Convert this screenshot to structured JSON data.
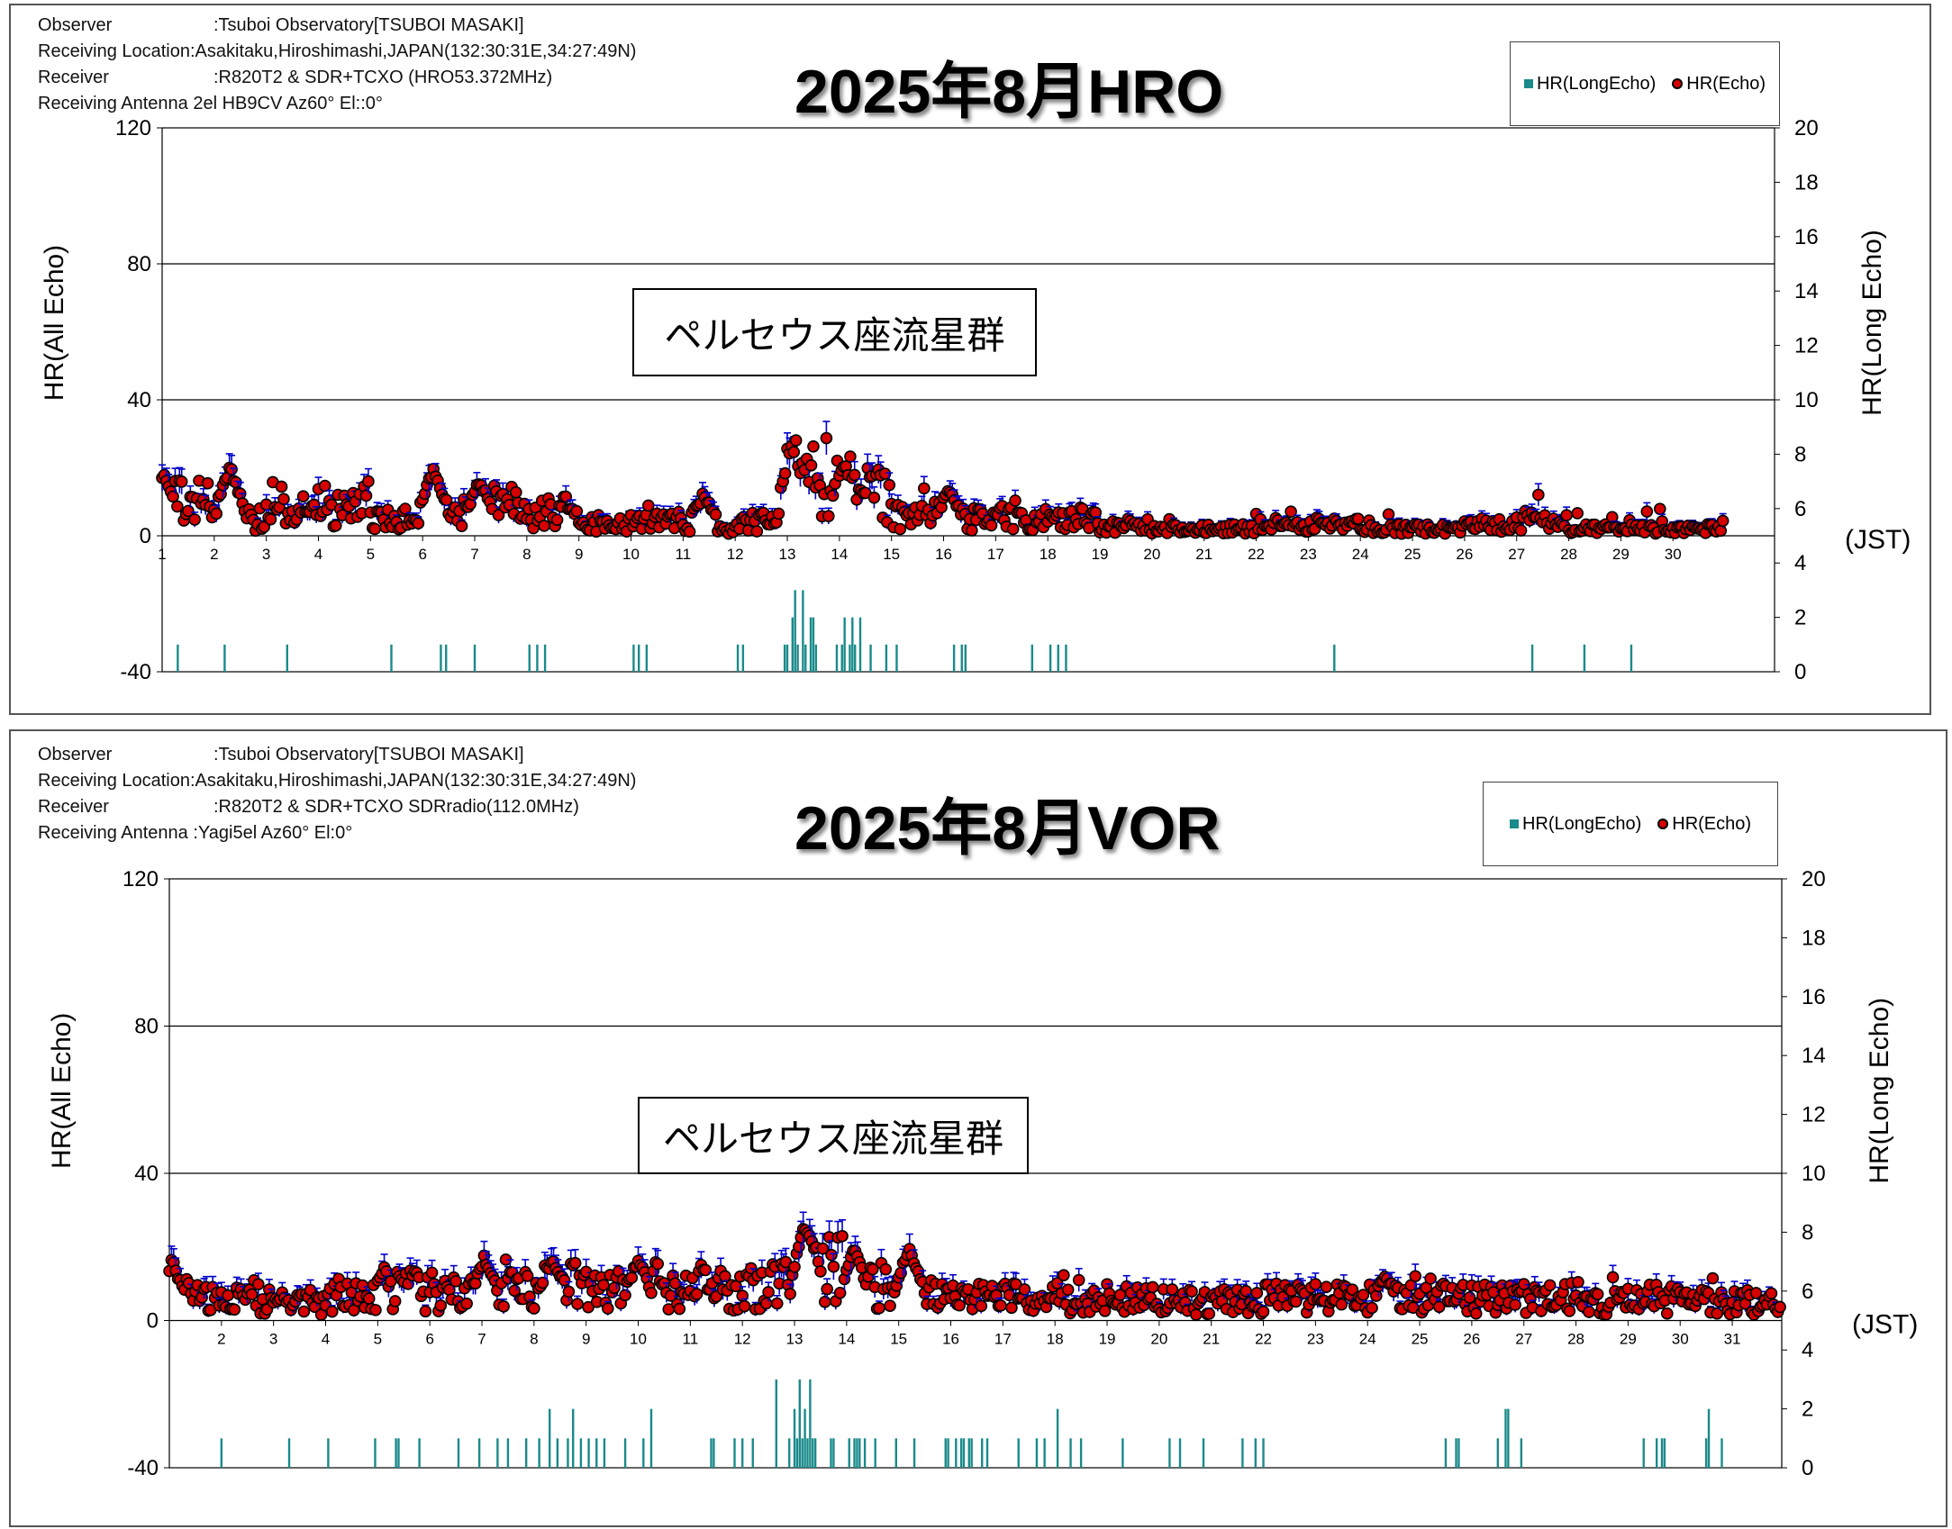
{
  "panels": [
    {
      "metadata": [
        {
          "label": "Observer",
          "value": ":Tsuboi Observatory[TSUBOI MASAKI]"
        },
        {
          "label": "Receiving Location",
          "value": ":Asakitaku,Hiroshimashi,JAPAN(132:30:31E,34:27:49N)"
        },
        {
          "label": "Receiver",
          "value": ":R820T2 & SDR+TCXO (HRO53.372MHz)"
        },
        {
          "label": "Receiving Antenna",
          "value": "2el HB9CV Az60°  El::0°"
        }
      ],
      "annotation": "ペルセウス座流星群",
      "legend": {
        "long": "HR(LongEcho)",
        "echo": "HR(Echo)"
      },
      "unit_label": "(JST)"
    },
    {
      "metadata": [
        {
          "label": "Observer",
          "value": ":Tsuboi Observatory[TSUBOI MASAKI]"
        },
        {
          "label": "Receiving Location",
          "value": ":Asakitaku,Hiroshimashi,JAPAN(132:30:31E,34:27:49N)"
        },
        {
          "label": "Receiver",
          "value": ":R820T2 & SDR+TCXO SDRradio(112.0MHz)"
        },
        {
          "label": "Receiving Antenna",
          "value": ":Yagi5el   Az60°  El:0°"
        }
      ],
      "annotation": "ペルセウス座流星群",
      "legend": {
        "long": "HR(LongEcho)",
        "echo": "HR(Echo)"
      },
      "unit_label": "(JST)"
    }
  ],
  "chart_data": [
    {
      "type": "scatter",
      "title": "2025年8月HRO",
      "ylabel": "HR(All Echo)",
      "y2label": "HR(Long Echo)",
      "ylim": [
        -40,
        120
      ],
      "y2lim": [
        0,
        20
      ],
      "yticks": [
        -40,
        0,
        40,
        80,
        120
      ],
      "y2ticks": [
        0,
        2,
        4,
        6,
        8,
        10,
        12,
        14,
        16,
        18,
        20
      ],
      "xlim": [
        1,
        31.95
      ],
      "xticks": [
        "1",
        "2",
        "3",
        "4",
        "5",
        "6",
        "7",
        "8",
        "9",
        "10",
        "11",
        "12",
        "13",
        "14",
        "15",
        "16",
        "17",
        "18",
        "19",
        "20",
        "21",
        "22",
        "23",
        "24",
        "25",
        "26",
        "27",
        "28",
        "29",
        "30"
      ],
      "gridlines": [
        0,
        40,
        80
      ],
      "legend_position": "top-right",
      "colors": {
        "echo_fill": "#d40000",
        "echo_edge": "#000000",
        "errorbar": "#0000cc",
        "long_echo": "#1a8a8a"
      },
      "series": [
        {
          "name": "HR(Echo)",
          "daily_avg": [
            10,
            5,
            7,
            9,
            5,
            7,
            9,
            7,
            4,
            4,
            2,
            4,
            17,
            12,
            6,
            5,
            5,
            5,
            3,
            2,
            2,
            3,
            3,
            2,
            2,
            3,
            4,
            2,
            2,
            2
          ],
          "peaks": [
            {
              "x": 1.05,
              "y": 17
            },
            {
              "x": 2.3,
              "y": 19
            },
            {
              "x": 6.2,
              "y": 18
            },
            {
              "x": 7.1,
              "y": 15
            },
            {
              "x": 11.4,
              "y": 11
            },
            {
              "x": 13.1,
              "y": 26
            },
            {
              "x": 13.3,
              "y": 20
            },
            {
              "x": 14.1,
              "y": 20
            },
            {
              "x": 16.1,
              "y": 12
            }
          ]
        },
        {
          "name": "HR(LongEcho)",
          "values": [
            {
              "x": 1.3,
              "v": 1
            },
            {
              "x": 2.2,
              "v": 1
            },
            {
              "x": 3.4,
              "v": 1
            },
            {
              "x": 5.4,
              "v": 1
            },
            {
              "x": 6.35,
              "v": 1
            },
            {
              "x": 6.45,
              "v": 1
            },
            {
              "x": 7.0,
              "v": 1
            },
            {
              "x": 8.05,
              "v": 1
            },
            {
              "x": 8.2,
              "v": 1
            },
            {
              "x": 8.35,
              "v": 1
            },
            {
              "x": 10.05,
              "v": 1
            },
            {
              "x": 10.15,
              "v": 1
            },
            {
              "x": 10.3,
              "v": 1
            },
            {
              "x": 12.05,
              "v": 1
            },
            {
              "x": 12.15,
              "v": 1
            },
            {
              "x": 12.95,
              "v": 1
            },
            {
              "x": 13.0,
              "v": 1
            },
            {
              "x": 13.1,
              "v": 2
            },
            {
              "x": 13.15,
              "v": 3
            },
            {
              "x": 13.2,
              "v": 1
            },
            {
              "x": 13.3,
              "v": 3
            },
            {
              "x": 13.35,
              "v": 1
            },
            {
              "x": 13.45,
              "v": 2
            },
            {
              "x": 13.5,
              "v": 2
            },
            {
              "x": 13.55,
              "v": 1
            },
            {
              "x": 13.95,
              "v": 1
            },
            {
              "x": 14.05,
              "v": 1
            },
            {
              "x": 14.1,
              "v": 2
            },
            {
              "x": 14.2,
              "v": 1
            },
            {
              "x": 14.25,
              "v": 2
            },
            {
              "x": 14.3,
              "v": 1
            },
            {
              "x": 14.4,
              "v": 2
            },
            {
              "x": 14.6,
              "v": 1
            },
            {
              "x": 14.9,
              "v": 1
            },
            {
              "x": 15.1,
              "v": 1
            },
            {
              "x": 16.2,
              "v": 1
            },
            {
              "x": 16.35,
              "v": 1
            },
            {
              "x": 16.42,
              "v": 1
            },
            {
              "x": 17.7,
              "v": 1
            },
            {
              "x": 18.05,
              "v": 1
            },
            {
              "x": 18.2,
              "v": 1
            },
            {
              "x": 18.35,
              "v": 1
            },
            {
              "x": 23.5,
              "v": 1
            },
            {
              "x": 27.3,
              "v": 1
            },
            {
              "x": 28.3,
              "v": 1
            },
            {
              "x": 29.2,
              "v": 1
            }
          ]
        }
      ]
    },
    {
      "type": "scatter",
      "title": "2025年8月VOR",
      "ylabel": "HR(All Echo)",
      "y2label": "HR(Long Echo)",
      "ylim": [
        -40,
        120
      ],
      "y2lim": [
        0,
        20
      ],
      "yticks": [
        -40,
        0,
        40,
        80,
        120
      ],
      "y2ticks": [
        0,
        2,
        4,
        6,
        8,
        10,
        12,
        14,
        16,
        18,
        20
      ],
      "xlim": [
        1,
        31.95
      ],
      "xticks": [
        "2",
        "3",
        "4",
        "5",
        "6",
        "7",
        "8",
        "9",
        "10",
        "11",
        "12",
        "13",
        "14",
        "15",
        "16",
        "17",
        "18",
        "19",
        "20",
        "21",
        "22",
        "23",
        "24",
        "25",
        "26",
        "27",
        "28",
        "29",
        "30",
        "31"
      ],
      "gridlines": [
        0,
        40,
        80
      ],
      "legend_position": "top-right",
      "colors": {
        "echo_fill": "#d40000",
        "echo_edge": "#000000",
        "errorbar": "#0000cc",
        "long_echo": "#1a8a8a"
      },
      "series": [
        {
          "name": "HR(Echo)",
          "daily_avg": [
            7,
            6,
            5,
            6,
            8,
            7,
            8,
            9,
            8,
            8,
            9,
            10,
            14,
            9,
            7,
            6,
            6,
            6,
            6,
            5,
            5,
            6,
            6,
            6,
            6,
            6,
            6,
            5,
            6,
            5,
            5
          ],
          "peaks": [
            {
              "x": 1.05,
              "y": 15
            },
            {
              "x": 7.05,
              "y": 16
            },
            {
              "x": 8.35,
              "y": 16
            },
            {
              "x": 10.0,
              "y": 16
            },
            {
              "x": 13.2,
              "y": 25
            },
            {
              "x": 13.3,
              "y": 23
            },
            {
              "x": 14.15,
              "y": 18
            },
            {
              "x": 15.2,
              "y": 19
            },
            {
              "x": 24.35,
              "y": 11
            }
          ]
        },
        {
          "name": "HR(LongEcho)",
          "values": [
            {
              "x": 2.0,
              "v": 1
            },
            {
              "x": 3.3,
              "v": 1
            },
            {
              "x": 4.05,
              "v": 1
            },
            {
              "x": 4.95,
              "v": 1
            },
            {
              "x": 5.35,
              "v": 1
            },
            {
              "x": 5.4,
              "v": 1
            },
            {
              "x": 5.8,
              "v": 1
            },
            {
              "x": 6.55,
              "v": 1
            },
            {
              "x": 6.95,
              "v": 1
            },
            {
              "x": 7.3,
              "v": 1
            },
            {
              "x": 7.5,
              "v": 1
            },
            {
              "x": 7.85,
              "v": 1
            },
            {
              "x": 8.1,
              "v": 1
            },
            {
              "x": 8.3,
              "v": 2
            },
            {
              "x": 8.45,
              "v": 1
            },
            {
              "x": 8.65,
              "v": 1
            },
            {
              "x": 8.75,
              "v": 2
            },
            {
              "x": 8.9,
              "v": 1
            },
            {
              "x": 9.05,
              "v": 1
            },
            {
              "x": 9.2,
              "v": 1
            },
            {
              "x": 9.35,
              "v": 1
            },
            {
              "x": 9.75,
              "v": 1
            },
            {
              "x": 10.1,
              "v": 1
            },
            {
              "x": 10.25,
              "v": 2
            },
            {
              "x": 11.4,
              "v": 1
            },
            {
              "x": 11.45,
              "v": 1
            },
            {
              "x": 11.85,
              "v": 1
            },
            {
              "x": 12.0,
              "v": 1
            },
            {
              "x": 12.2,
              "v": 1
            },
            {
              "x": 12.65,
              "v": 3
            },
            {
              "x": 12.9,
              "v": 1
            },
            {
              "x": 13.0,
              "v": 2
            },
            {
              "x": 13.05,
              "v": 1
            },
            {
              "x": 13.1,
              "v": 3
            },
            {
              "x": 13.15,
              "v": 1
            },
            {
              "x": 13.2,
              "v": 2
            },
            {
              "x": 13.25,
              "v": 1
            },
            {
              "x": 13.3,
              "v": 3
            },
            {
              "x": 13.35,
              "v": 1
            },
            {
              "x": 13.4,
              "v": 1
            },
            {
              "x": 13.7,
              "v": 1
            },
            {
              "x": 13.75,
              "v": 1
            },
            {
              "x": 14.05,
              "v": 1
            },
            {
              "x": 14.15,
              "v": 1
            },
            {
              "x": 14.2,
              "v": 1
            },
            {
              "x": 14.25,
              "v": 1
            },
            {
              "x": 14.35,
              "v": 1
            },
            {
              "x": 14.55,
              "v": 1
            },
            {
              "x": 14.95,
              "v": 1
            },
            {
              "x": 15.3,
              "v": 1
            },
            {
              "x": 15.9,
              "v": 1
            },
            {
              "x": 15.95,
              "v": 1
            },
            {
              "x": 16.1,
              "v": 1
            },
            {
              "x": 16.2,
              "v": 1
            },
            {
              "x": 16.25,
              "v": 1
            },
            {
              "x": 16.35,
              "v": 1
            },
            {
              "x": 16.4,
              "v": 1
            },
            {
              "x": 16.6,
              "v": 1
            },
            {
              "x": 16.7,
              "v": 1
            },
            {
              "x": 17.3,
              "v": 1
            },
            {
              "x": 17.65,
              "v": 1
            },
            {
              "x": 17.8,
              "v": 1
            },
            {
              "x": 18.05,
              "v": 2
            },
            {
              "x": 18.3,
              "v": 1
            },
            {
              "x": 18.5,
              "v": 1
            },
            {
              "x": 19.3,
              "v": 1
            },
            {
              "x": 20.2,
              "v": 1
            },
            {
              "x": 20.4,
              "v": 1
            },
            {
              "x": 20.85,
              "v": 1
            },
            {
              "x": 21.6,
              "v": 1
            },
            {
              "x": 21.85,
              "v": 1
            },
            {
              "x": 22.0,
              "v": 1
            },
            {
              "x": 25.5,
              "v": 1
            },
            {
              "x": 25.7,
              "v": 1
            },
            {
              "x": 25.75,
              "v": 1
            },
            {
              "x": 26.5,
              "v": 1
            },
            {
              "x": 26.65,
              "v": 2
            },
            {
              "x": 26.7,
              "v": 2
            },
            {
              "x": 26.95,
              "v": 1
            },
            {
              "x": 29.3,
              "v": 1
            },
            {
              "x": 29.55,
              "v": 1
            },
            {
              "x": 29.65,
              "v": 1
            },
            {
              "x": 29.7,
              "v": 1
            },
            {
              "x": 30.5,
              "v": 1
            },
            {
              "x": 30.55,
              "v": 2
            },
            {
              "x": 30.8,
              "v": 1
            }
          ]
        }
      ]
    }
  ]
}
